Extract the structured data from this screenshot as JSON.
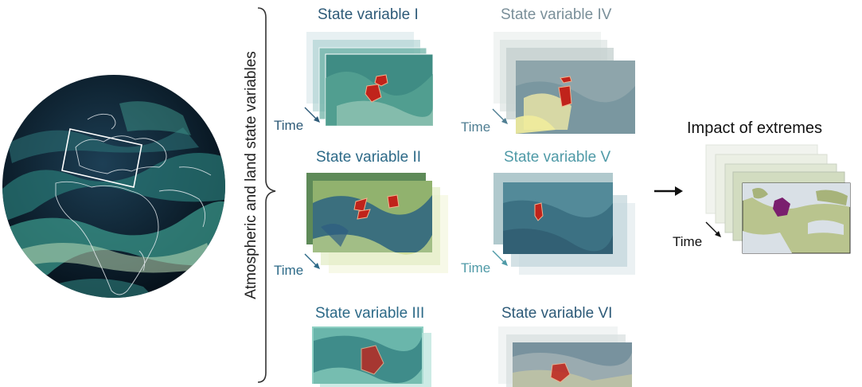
{
  "bracket_label": "Atmospheric and land state variables",
  "variables": [
    {
      "title": "State variable I",
      "time_label": "Time"
    },
    {
      "title": "State variable IV",
      "time_label": "Time"
    },
    {
      "title": "State variable II",
      "time_label": "Time"
    },
    {
      "title": "State variable V",
      "time_label": "Time"
    },
    {
      "title": "State variable III"
    },
    {
      "title": "State variable VI"
    }
  ],
  "impact": {
    "title": "Impact of extremes",
    "time_label": "Time"
  },
  "colors": {
    "globe_ocean": "#0e2233",
    "globe_field": "#2f8b83",
    "extreme_region": "#c0231b",
    "impact_region": "#7a1f6e",
    "title_blue": "#2d5a78",
    "title_light": "#4f9aa7"
  }
}
